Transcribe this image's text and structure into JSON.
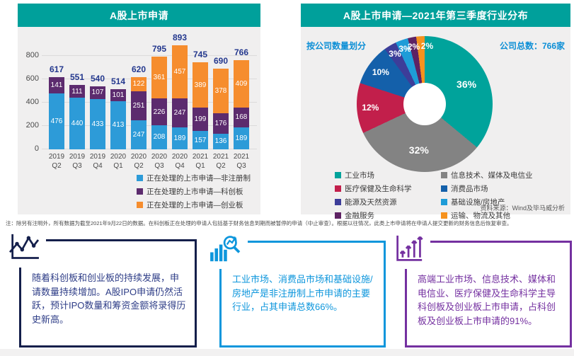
{
  "chart_data": [
    {
      "type": "bar",
      "stacked": true,
      "title": "A股上市申请",
      "categories": [
        "2019 Q2",
        "2019 Q3",
        "2019 Q4",
        "2020 Q1",
        "2020 Q2",
        "2020 Q3",
        "2020 Q4",
        "2021 Q1",
        "2021 Q2",
        "2021 Q3"
      ],
      "series": [
        {
          "name": "正在处理的上市申请—非注册制",
          "color": "#2D9BD8",
          "values": [
            476,
            440,
            433,
            413,
            247,
            208,
            189,
            157,
            136,
            189
          ]
        },
        {
          "name": "正在处理的上市申请—科创板",
          "color": "#5C2B6E",
          "values": [
            141,
            111,
            107,
            101,
            251,
            226,
            247,
            199,
            176,
            168
          ]
        },
        {
          "name": "正在处理的上市申请—创业板",
          "color": "#F68D2E",
          "values": [
            null,
            null,
            null,
            null,
            122,
            361,
            457,
            389,
            378,
            409
          ]
        }
      ],
      "totals": [
        617,
        551,
        540,
        514,
        620,
        795,
        893,
        745,
        690,
        766
      ],
      "ylim": [
        0,
        800
      ],
      "y_ticks": [
        0,
        200,
        400,
        600,
        800
      ],
      "grid": true,
      "legend_position": "bottom-right"
    },
    {
      "type": "pie",
      "donut": true,
      "title": "A股上市申请—2021年第三季度行业分布",
      "subtitle": "按公司数量划分",
      "total_note": "公司总数：766家",
      "source": "资料来源：Wind及毕马威分析",
      "slices": [
        {
          "label": "工业市场",
          "pct": 36,
          "color": "#00A39B"
        },
        {
          "label": "信息技术、媒体及电信业",
          "pct": 32,
          "color": "#838383"
        },
        {
          "label": "医疗保健及生命科学",
          "pct": 12,
          "color": "#C21F4B"
        },
        {
          "label": "消费品市场",
          "pct": 10,
          "color": "#1460AA"
        },
        {
          "label": "能源及天然资源",
          "pct": 3,
          "color": "#3D3D99"
        },
        {
          "label": "基础设施/房地产",
          "pct": 3,
          "color": "#1E9CD8"
        },
        {
          "label": "金融服务",
          "pct": 2,
          "color": "#5E2263"
        },
        {
          "label": "运输、物流及其他",
          "pct": 2,
          "color": "#F6921E"
        }
      ],
      "legend_columns": [
        [
          0,
          2,
          4,
          6
        ],
        [
          1,
          3,
          5,
          7
        ]
      ],
      "legend_position": "bottom"
    }
  ],
  "header_color": "#00A09B",
  "note": "注：除另有注明外，所有数据为截至2021年9月22日的数据。在科创板正在处理的申请人包括基于财务信息到期而被暂停的申请（中止审查）。根据以往情况，此类上市申请将在申请人提交更新的财务信息后恢复审查。",
  "callouts": [
    {
      "icon": "line-chart-icon",
      "border_color": "#141F4B",
      "text_color": "#2E3D87",
      "text": "随着科创板和创业板的持续发展，申请数量持续增加。A股IPO申请仍然活跃，预计IPO数量和筹资金额将录得历史新高。"
    },
    {
      "icon": "bar-chart-magnifier-icon",
      "border_color": "#0D96DC",
      "text_color": "#0D96DC",
      "text": "工业市场、消费品市场和基础设施/房地产是非注册制上市申请的主要行业，占其申请总数66%。"
    },
    {
      "icon": "growth-arrows-icon",
      "border_color": "#7430A0",
      "text_color": "#7430A0",
      "text": "高端工业市场、信息技术、媒体和电信业、医疗保健及生命科学主导科创板及创业板上市申请，占科创板及创业板上市申请的91%。"
    }
  ]
}
